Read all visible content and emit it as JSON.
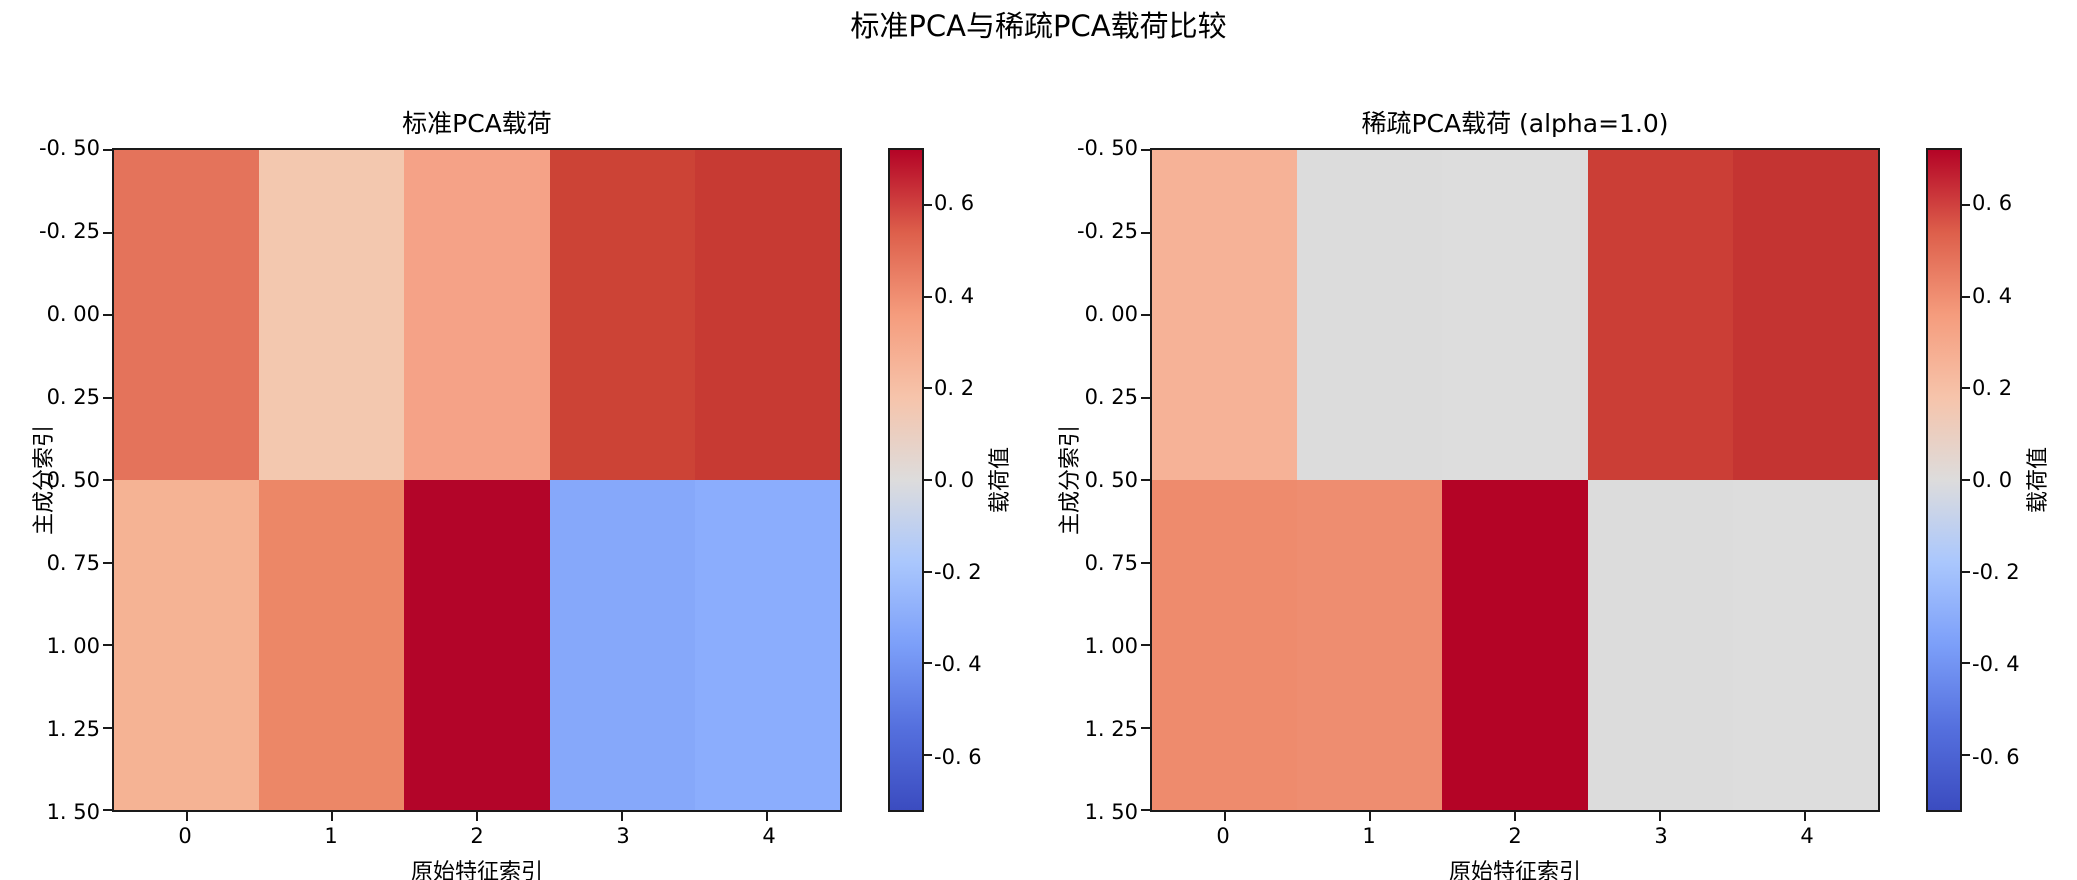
{
  "figure": {
    "title": "标准PCA与稀疏PCA载荷比较",
    "background": "#ffffff",
    "spine_color": "#1a1a1a"
  },
  "chart_data": [
    {
      "type": "heatmap",
      "title": "标准PCA载荷",
      "xlabel": "原始特征索引",
      "ylabel": "主成分索引",
      "x_ticks": [
        "0",
        "1",
        "2",
        "3",
        "4"
      ],
      "y_ticks": [
        "-0. 50",
        "-0. 25",
        "0. 00",
        "0. 25",
        "0. 50",
        "0. 75",
        "1. 00",
        "1. 25",
        "1. 50"
      ],
      "x_range": [
        -0.5,
        4.5
      ],
      "y_range": [
        -0.5,
        1.5
      ],
      "rows": 2,
      "cols": 5,
      "values": [
        [
          0.46,
          0.13,
          0.29,
          0.55,
          0.58
        ],
        [
          0.22,
          0.37,
          0.71,
          -0.33,
          -0.32
        ]
      ],
      "cell_colors": [
        [
          "#e4735b",
          "#f3c8af",
          "#f5a287",
          "#cc4336",
          "#c73a33"
        ],
        [
          "#f5b394",
          "#ec8767",
          "#b30529",
          "#86a8fa",
          "#8badfd"
        ]
      ],
      "colorbar": {
        "label": "载荷值",
        "tick_labels": [
          "0. 6",
          "0. 4",
          "0. 2",
          "0. 0",
          "-0. 2",
          "-0. 4",
          "-0. 6"
        ],
        "tick_values": [
          0.6,
          0.4,
          0.2,
          0.0,
          -0.2,
          -0.4,
          -0.6
        ],
        "vmin": -0.72,
        "vmax": 0.72,
        "colormap": "coolwarm"
      }
    },
    {
      "type": "heatmap",
      "title": "稀疏PCA载荷 (alpha=1.0)",
      "xlabel": "原始特征索引",
      "ylabel": "主成分索引",
      "x_ticks": [
        "0",
        "1",
        "2",
        "3",
        "4"
      ],
      "y_ticks": [
        "-0. 50",
        "-0. 25",
        "0. 00",
        "0. 25",
        "0. 50",
        "0. 75",
        "1. 00",
        "1. 25",
        "1. 50"
      ],
      "x_range": [
        -0.5,
        4.5
      ],
      "y_range": [
        -0.5,
        1.5
      ],
      "rows": 2,
      "cols": 5,
      "values": [
        [
          0.22,
          0.0,
          0.0,
          0.56,
          0.59
        ],
        [
          0.37,
          0.36,
          0.71,
          0.0,
          0.0
        ]
      ],
      "cell_colors": [
        [
          "#f6b297",
          "#dcdcdc",
          "#dddddd",
          "#cb3e36",
          "#c43432"
        ],
        [
          "#ee8b6d",
          "#ee8d70",
          "#b40426",
          "#dcdcdc",
          "#dddddd"
        ]
      ],
      "colorbar": {
        "label": "载荷值",
        "tick_labels": [
          "0. 6",
          "0. 4",
          "0. 2",
          "0. 0",
          "-0. 2",
          "-0. 4",
          "-0. 6"
        ],
        "tick_values": [
          0.6,
          0.4,
          0.2,
          0.0,
          -0.2,
          -0.4,
          -0.6
        ],
        "vmin": -0.72,
        "vmax": 0.72,
        "colormap": "coolwarm"
      }
    }
  ]
}
